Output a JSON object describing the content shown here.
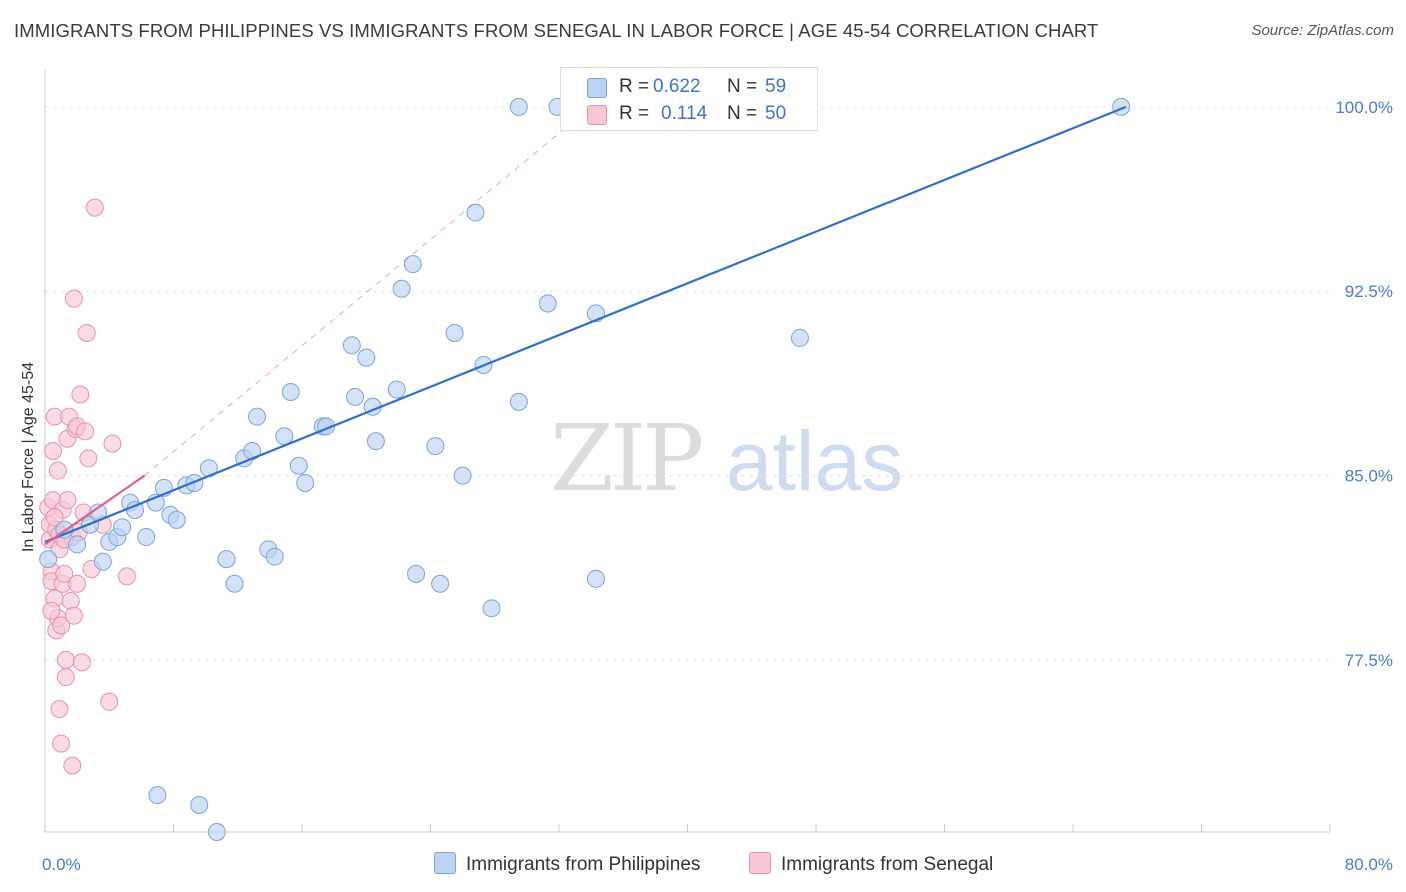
{
  "title": "IMMIGRANTS FROM PHILIPPINES VS IMMIGRANTS FROM SENEGAL IN LABOR FORCE | AGE 45-54 CORRELATION CHART",
  "source": "Source: ZipAtlas.com",
  "watermark": {
    "zip": "ZIP",
    "atlas": "atlas"
  },
  "legend": {
    "rows": [
      {
        "r_label": "R =",
        "r_value": "0.622",
        "n_label": "N =",
        "n_value": "59"
      },
      {
        "r_label": "R =",
        "r_value": "0.114",
        "n_label": "N =",
        "n_value": "50"
      }
    ]
  },
  "colors": {
    "blue_fill": "#bcd3f2",
    "blue_stroke": "#7aa3da",
    "blue_line": "#2f6fcc",
    "pink_fill": "#f8c8d6",
    "pink_stroke": "#e891ac",
    "pink_line": "#e0628c",
    "grid": "#e3e3e3",
    "tick_text": "#4a7bd0"
  },
  "chart_data": {
    "type": "scatter",
    "title": "IMMIGRANTS FROM PHILIPPINES VS IMMIGRANTS FROM SENEGAL IN LABOR FORCE | AGE 45-54 CORRELATION CHART",
    "xlabel": "",
    "ylabel": "In Labor Force | Age 45-54",
    "xlim": [
      0,
      80
    ],
    "ylim": [
      70.5,
      101.5
    ],
    "x_tick_labels": [
      "0.0%",
      "80.0%"
    ],
    "y_ticks": [
      77.5,
      85.0,
      92.5,
      100.0
    ],
    "y_tick_labels": [
      "77.5%",
      "85.0%",
      "92.5%",
      "100.0%"
    ],
    "series": [
      {
        "name": "Immigrants from Philippines",
        "color": "#bcd3f2",
        "points": [
          [
            0.2,
            81.6
          ],
          [
            1.2,
            82.8
          ],
          [
            2.0,
            82.2
          ],
          [
            2.8,
            83.0
          ],
          [
            3.3,
            83.5
          ],
          [
            4.0,
            82.3
          ],
          [
            4.5,
            82.5
          ],
          [
            4.8,
            82.9
          ],
          [
            5.3,
            83.9
          ],
          [
            5.6,
            83.6
          ],
          [
            6.3,
            82.5
          ],
          [
            6.9,
            83.9
          ],
          [
            7.4,
            84.5
          ],
          [
            7.8,
            83.4
          ],
          [
            8.2,
            83.2
          ],
          [
            8.8,
            84.6
          ],
          [
            9.3,
            84.7
          ],
          [
            10.2,
            85.3
          ],
          [
            11.3,
            81.6
          ],
          [
            11.8,
            80.6
          ],
          [
            12.4,
            85.7
          ],
          [
            12.9,
            86.0
          ],
          [
            13.2,
            87.4
          ],
          [
            13.9,
            82.0
          ],
          [
            14.3,
            81.7
          ],
          [
            14.9,
            86.6
          ],
          [
            15.3,
            88.4
          ],
          [
            15.8,
            85.4
          ],
          [
            16.2,
            84.7
          ],
          [
            17.3,
            87.0
          ],
          [
            17.5,
            87.0
          ],
          [
            19.1,
            90.3
          ],
          [
            19.3,
            88.2
          ],
          [
            20.0,
            89.8
          ],
          [
            20.4,
            87.8
          ],
          [
            20.6,
            86.4
          ],
          [
            21.9,
            88.5
          ],
          [
            22.2,
            92.6
          ],
          [
            22.9,
            93.6
          ],
          [
            23.1,
            81.0
          ],
          [
            24.3,
            86.2
          ],
          [
            24.6,
            80.6
          ],
          [
            25.5,
            90.8
          ],
          [
            26.0,
            85.0
          ],
          [
            26.8,
            95.7
          ],
          [
            27.3,
            89.5
          ],
          [
            27.8,
            79.6
          ],
          [
            29.5,
            88.0
          ],
          [
            29.5,
            100.0
          ],
          [
            31.9,
            100.0
          ],
          [
            31.3,
            92.0
          ],
          [
            34.3,
            91.6
          ],
          [
            34.3,
            80.8
          ],
          [
            47.0,
            90.6
          ],
          [
            67.0,
            100.0
          ],
          [
            9.6,
            71.6
          ],
          [
            10.7,
            70.5
          ],
          [
            7.0,
            72.0
          ],
          [
            3.6,
            81.5
          ]
        ]
      },
      {
        "name": "Immigrants from Senegal",
        "color": "#f8c8d6",
        "points": [
          [
            0.2,
            83.7
          ],
          [
            0.3,
            83.0
          ],
          [
            0.3,
            82.4
          ],
          [
            0.4,
            81.1
          ],
          [
            0.4,
            80.7
          ],
          [
            0.5,
            84.0
          ],
          [
            0.5,
            86.0
          ],
          [
            0.6,
            87.4
          ],
          [
            0.6,
            80.0
          ],
          [
            0.7,
            82.8
          ],
          [
            0.7,
            78.7
          ],
          [
            0.8,
            79.2
          ],
          [
            0.9,
            82.6
          ],
          [
            0.9,
            75.5
          ],
          [
            1.0,
            74.1
          ],
          [
            1.0,
            78.9
          ],
          [
            1.1,
            83.6
          ],
          [
            1.1,
            80.6
          ],
          [
            1.2,
            81.0
          ],
          [
            1.3,
            77.5
          ],
          [
            1.3,
            76.8
          ],
          [
            1.4,
            86.5
          ],
          [
            1.4,
            84.0
          ],
          [
            1.5,
            87.4
          ],
          [
            1.6,
            79.9
          ],
          [
            1.7,
            82.5
          ],
          [
            1.7,
            73.2
          ],
          [
            1.8,
            92.2
          ],
          [
            1.9,
            86.9
          ],
          [
            2.0,
            87.0
          ],
          [
            2.0,
            80.6
          ],
          [
            2.1,
            82.7
          ],
          [
            2.2,
            88.3
          ],
          [
            2.3,
            77.4
          ],
          [
            2.5,
            86.8
          ],
          [
            2.6,
            90.8
          ],
          [
            2.7,
            85.7
          ],
          [
            2.9,
            81.2
          ],
          [
            3.1,
            95.9
          ],
          [
            3.6,
            83.0
          ],
          [
            4.0,
            75.8
          ],
          [
            4.2,
            86.3
          ],
          [
            5.1,
            80.9
          ],
          [
            0.9,
            82.0
          ],
          [
            1.2,
            82.4
          ],
          [
            0.6,
            83.3
          ],
          [
            1.8,
            79.3
          ],
          [
            2.4,
            83.5
          ],
          [
            0.4,
            79.5
          ],
          [
            0.8,
            85.2
          ]
        ]
      }
    ],
    "trend_lines": [
      {
        "series": "Immigrants from Philippines",
        "x1": 0,
        "y1": 82.3,
        "x2": 67.3,
        "y2": 100.0,
        "style": "solid"
      },
      {
        "series": "Immigrants from Senegal",
        "x1": 0,
        "y1": 82.2,
        "x2": 6.2,
        "y2": 85.0,
        "style": "solid"
      },
      {
        "series": "Immigrants from Senegal",
        "x1": 6.2,
        "y1": 85.0,
        "x2": 34.0,
        "y2": 100.0,
        "style": "dashed"
      }
    ]
  },
  "bottom_legend": {
    "items": [
      "Immigrants from Philippines",
      "Immigrants from Senegal"
    ]
  }
}
